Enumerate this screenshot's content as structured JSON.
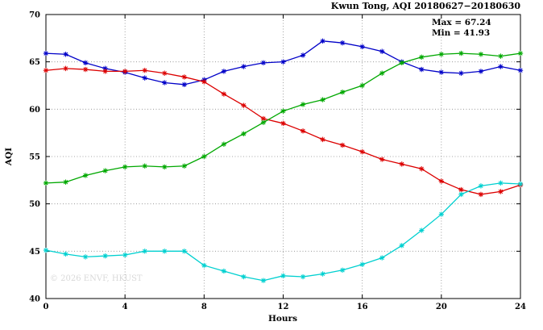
{
  "title": "Kwun Tong, AQI 20180627−20180630",
  "annotation": {
    "max_label": "Max = 67.24",
    "min_label": "Min = 41.93"
  },
  "watermark": "© 2026 ENVF, HKUST",
  "chart_data": {
    "type": "line",
    "title": "Kwun Tong, AQI 20180627−20180630",
    "xlabel": "Hours",
    "ylabel": "AQI",
    "xlim": [
      0,
      24
    ],
    "ylim": [
      40,
      70
    ],
    "xticks": [
      0,
      4,
      8,
      12,
      16,
      20,
      24
    ],
    "yticks": [
      40,
      45,
      50,
      55,
      60,
      65,
      70
    ],
    "grid": true,
    "legend_position": "none",
    "marker": "asterisk",
    "x": [
      0,
      1,
      2,
      3,
      4,
      5,
      6,
      7,
      8,
      9,
      10,
      11,
      12,
      13,
      14,
      15,
      16,
      17,
      18,
      19,
      20,
      21,
      22,
      23,
      24
    ],
    "series": [
      {
        "name": "series-blue",
        "color": "#0000c8",
        "values": [
          65.9,
          65.8,
          64.9,
          64.3,
          63.9,
          63.3,
          62.8,
          62.6,
          63.1,
          64.0,
          64.5,
          64.9,
          65.0,
          65.7,
          67.2,
          67.0,
          66.6,
          66.1,
          65.0,
          64.2,
          63.9,
          63.8,
          64.0,
          64.5,
          64.1
        ]
      },
      {
        "name": "series-red",
        "color": "#dc0000",
        "values": [
          64.1,
          64.3,
          64.2,
          64.0,
          64.0,
          64.1,
          63.8,
          63.4,
          62.9,
          61.6,
          60.4,
          59.0,
          58.5,
          57.7,
          56.8,
          56.2,
          55.5,
          54.7,
          54.2,
          53.7,
          52.4,
          51.5,
          51.0,
          51.3,
          52.0
        ]
      },
      {
        "name": "series-green",
        "color": "#00a800",
        "values": [
          52.2,
          52.3,
          53.0,
          53.5,
          53.9,
          54.0,
          53.9,
          54.0,
          55.0,
          56.3,
          57.4,
          58.6,
          59.8,
          60.5,
          61.0,
          61.8,
          62.5,
          63.8,
          64.9,
          65.5,
          65.8,
          65.9,
          65.8,
          65.6,
          65.9
        ]
      },
      {
        "name": "series-cyan",
        "color": "#00d0d0",
        "values": [
          45.1,
          44.7,
          44.4,
          44.5,
          44.6,
          45.0,
          45.0,
          45.0,
          43.5,
          42.9,
          42.3,
          41.9,
          42.4,
          42.3,
          42.6,
          43.0,
          43.6,
          44.3,
          45.6,
          47.2,
          48.9,
          51.0,
          51.9,
          52.2,
          52.1
        ]
      }
    ]
  }
}
